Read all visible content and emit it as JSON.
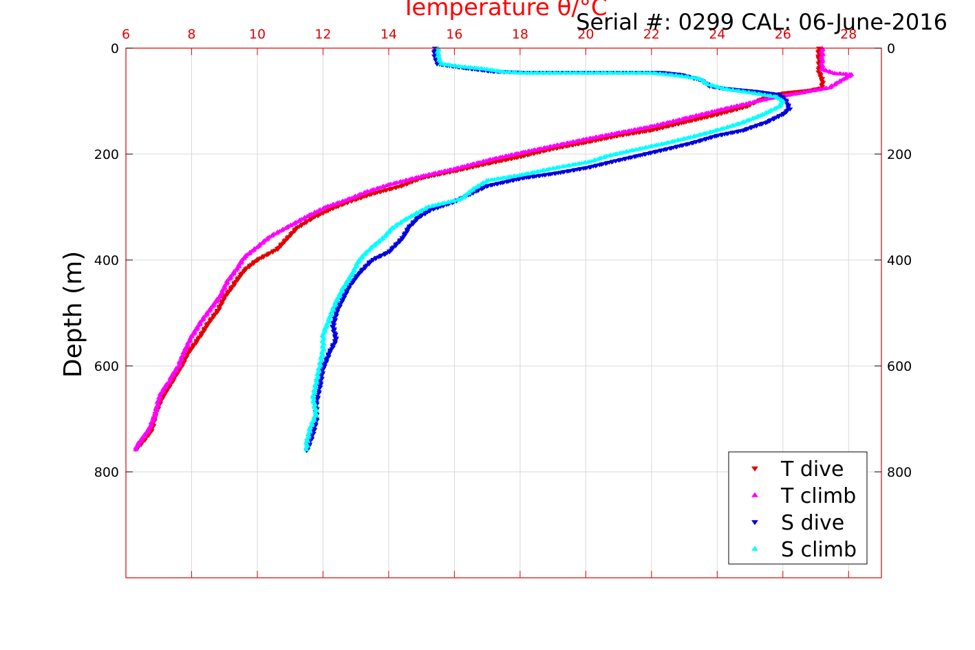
{
  "chart_data": {
    "type": "scatter",
    "title": "Temperature θ/°C",
    "serial_label": "Serial #: 0299 CAL: 06-June-2016",
    "ylabel": "Depth (m)",
    "xlim": [
      6,
      29
    ],
    "ylim": [
      0,
      1000
    ],
    "y_reversed": true,
    "grid": true,
    "x_ticks": [
      6,
      8,
      10,
      12,
      14,
      16,
      18,
      20,
      22,
      24,
      26,
      28
    ],
    "y_ticks": [
      0,
      200,
      400,
      600,
      800
    ],
    "legend_position": "bottom-right",
    "colors": {
      "axis": "#e00000",
      "grid": "#d8d8d8"
    },
    "series": [
      {
        "name": "T dive",
        "color": "#e00000",
        "marker": "triangle-down",
        "points": [
          [
            27.1,
            0
          ],
          [
            27.1,
            20
          ],
          [
            27.1,
            45
          ],
          [
            27.2,
            60
          ],
          [
            27.2,
            75
          ],
          [
            26.8,
            80
          ],
          [
            26.0,
            85
          ],
          [
            25.4,
            95
          ],
          [
            24.9,
            110
          ],
          [
            24.0,
            125
          ],
          [
            23.0,
            140
          ],
          [
            22.0,
            155
          ],
          [
            21.0,
            165
          ],
          [
            20.0,
            178
          ],
          [
            19.0,
            190
          ],
          [
            18.0,
            205
          ],
          [
            17.0,
            218
          ],
          [
            16.0,
            232
          ],
          [
            15.0,
            245
          ],
          [
            14.4,
            260
          ],
          [
            13.5,
            275
          ],
          [
            12.8,
            290
          ],
          [
            12.2,
            305
          ],
          [
            11.7,
            320
          ],
          [
            11.2,
            340
          ],
          [
            10.9,
            360
          ],
          [
            10.6,
            380
          ],
          [
            10.0,
            400
          ],
          [
            9.6,
            420
          ],
          [
            9.3,
            445
          ],
          [
            9.0,
            470
          ],
          [
            8.8,
            495
          ],
          [
            8.5,
            520
          ],
          [
            8.2,
            550
          ],
          [
            7.9,
            575
          ],
          [
            7.7,
            600
          ],
          [
            7.4,
            630
          ],
          [
            7.1,
            660
          ],
          [
            6.9,
            690
          ],
          [
            6.8,
            720
          ],
          [
            6.5,
            745
          ],
          [
            6.3,
            758
          ]
        ]
      },
      {
        "name": "T climb",
        "color": "#ff00ff",
        "marker": "triangle-up",
        "points": [
          [
            27.2,
            0
          ],
          [
            27.2,
            20
          ],
          [
            27.2,
            40
          ],
          [
            27.6,
            48
          ],
          [
            28.1,
            50
          ],
          [
            27.8,
            60
          ],
          [
            27.4,
            75
          ],
          [
            26.5,
            85
          ],
          [
            25.6,
            95
          ],
          [
            24.9,
            105
          ],
          [
            24.0,
            118
          ],
          [
            23.0,
            133
          ],
          [
            22.0,
            148
          ],
          [
            21.0,
            160
          ],
          [
            20.0,
            172
          ],
          [
            19.0,
            185
          ],
          [
            18.0,
            198
          ],
          [
            17.0,
            212
          ],
          [
            16.0,
            228
          ],
          [
            15.0,
            242
          ],
          [
            14.0,
            258
          ],
          [
            13.3,
            272
          ],
          [
            12.8,
            285
          ],
          [
            12.1,
            300
          ],
          [
            11.5,
            318
          ],
          [
            11.0,
            335
          ],
          [
            10.4,
            355
          ],
          [
            10.0,
            375
          ],
          [
            9.6,
            395
          ],
          [
            9.4,
            415
          ],
          [
            9.1,
            440
          ],
          [
            8.9,
            465
          ],
          [
            8.6,
            490
          ],
          [
            8.3,
            515
          ],
          [
            8.0,
            545
          ],
          [
            7.8,
            570
          ],
          [
            7.6,
            600
          ],
          [
            7.3,
            630
          ],
          [
            7.0,
            660
          ],
          [
            6.9,
            690
          ],
          [
            6.7,
            720
          ],
          [
            6.4,
            745
          ],
          [
            6.3,
            758
          ]
        ]
      },
      {
        "name": "S dive",
        "color": "#0000e0",
        "marker": "triangle-down",
        "points": [
          [
            15.4,
            0
          ],
          [
            15.4,
            15
          ],
          [
            15.5,
            30
          ],
          [
            16.4,
            38
          ],
          [
            17.2,
            44
          ],
          [
            18.2,
            46
          ],
          [
            20.3,
            46
          ],
          [
            21.5,
            46
          ],
          [
            22.3,
            46
          ],
          [
            22.9,
            50
          ],
          [
            23.5,
            60
          ],
          [
            23.8,
            72
          ],
          [
            24.2,
            76
          ],
          [
            25.2,
            82
          ],
          [
            25.9,
            88
          ],
          [
            26.1,
            100
          ],
          [
            26.2,
            115
          ],
          [
            26.0,
            125
          ],
          [
            25.5,
            140
          ],
          [
            24.8,
            155
          ],
          [
            24.0,
            165
          ],
          [
            23.3,
            178
          ],
          [
            22.5,
            190
          ],
          [
            21.6,
            203
          ],
          [
            20.9,
            213
          ],
          [
            20.1,
            225
          ],
          [
            19.2,
            235
          ],
          [
            18.1,
            245
          ],
          [
            17.0,
            260
          ],
          [
            16.5,
            275
          ],
          [
            16.0,
            290
          ],
          [
            15.3,
            305
          ],
          [
            14.9,
            320
          ],
          [
            14.6,
            340
          ],
          [
            14.4,
            360
          ],
          [
            14.0,
            385
          ],
          [
            13.5,
            400
          ],
          [
            13.1,
            425
          ],
          [
            12.8,
            450
          ],
          [
            12.6,
            475
          ],
          [
            12.4,
            500
          ],
          [
            12.3,
            525
          ],
          [
            12.4,
            550
          ],
          [
            12.2,
            575
          ],
          [
            12.0,
            605
          ],
          [
            11.9,
            640
          ],
          [
            11.8,
            670
          ],
          [
            11.8,
            700
          ],
          [
            11.7,
            725
          ],
          [
            11.6,
            745
          ],
          [
            11.5,
            760
          ]
        ]
      },
      {
        "name": "S climb",
        "color": "#00ffff",
        "marker": "triangle-up",
        "points": [
          [
            15.5,
            0
          ],
          [
            15.5,
            15
          ],
          [
            15.6,
            30
          ],
          [
            16.2,
            35
          ],
          [
            17.0,
            40
          ],
          [
            17.5,
            45
          ],
          [
            18.0,
            47
          ],
          [
            18.7,
            47
          ],
          [
            19.3,
            47
          ],
          [
            20.5,
            47
          ],
          [
            21.2,
            47
          ],
          [
            22.0,
            47
          ],
          [
            22.8,
            52
          ],
          [
            23.5,
            58
          ],
          [
            23.7,
            68
          ],
          [
            24.3,
            78
          ],
          [
            25.1,
            85
          ],
          [
            25.8,
            92
          ],
          [
            26.0,
            100
          ],
          [
            25.9,
            110
          ],
          [
            25.4,
            125
          ],
          [
            24.8,
            140
          ],
          [
            24.0,
            155
          ],
          [
            23.2,
            168
          ],
          [
            22.4,
            180
          ],
          [
            21.5,
            192
          ],
          [
            20.7,
            203
          ],
          [
            20.1,
            215
          ],
          [
            19.0,
            227
          ],
          [
            18.0,
            240
          ],
          [
            17.0,
            250
          ],
          [
            16.6,
            265
          ],
          [
            16.2,
            285
          ],
          [
            15.2,
            300
          ],
          [
            14.6,
            320
          ],
          [
            14.1,
            340
          ],
          [
            13.8,
            360
          ],
          [
            13.4,
            380
          ],
          [
            13.1,
            400
          ],
          [
            12.9,
            425
          ],
          [
            12.6,
            455
          ],
          [
            12.4,
            480
          ],
          [
            12.2,
            510
          ],
          [
            12.0,
            540
          ],
          [
            12.0,
            570
          ],
          [
            11.9,
            600
          ],
          [
            11.8,
            630
          ],
          [
            11.7,
            660
          ],
          [
            11.8,
            690
          ],
          [
            11.6,
            720
          ],
          [
            11.5,
            745
          ],
          [
            11.5,
            758
          ]
        ]
      }
    ]
  }
}
